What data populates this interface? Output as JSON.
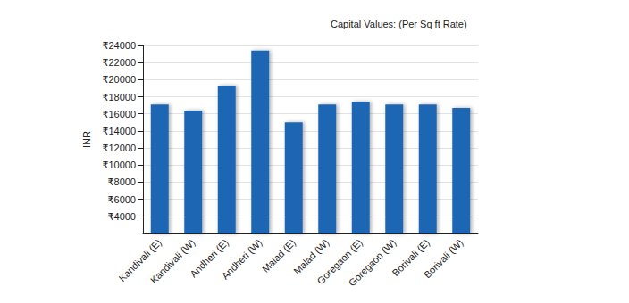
{
  "chart_data": {
    "type": "bar",
    "title": "Capital Values: (Per Sq ft Rate)",
    "y_label": "INR",
    "categories": [
      "Kandivali (E)",
      "Kandivali (W)",
      "Andheri (E)",
      "Andheri (W)",
      "Malad (E)",
      "Malad (W)",
      "Goregaon (E)",
      "Goregaon (W)",
      "Borivali (E)",
      "Borivali (W)"
    ],
    "values": [
      17100,
      16400,
      19300,
      23400,
      15000,
      17100,
      17400,
      17100,
      17100,
      16700
    ],
    "color": "#1f66b3",
    "ylim": [
      2000,
      24000
    ],
    "yticks": [
      {
        "value": 4000,
        "label": "₹4000"
      },
      {
        "value": 6000,
        "label": "₹6000"
      },
      {
        "value": 8000,
        "label": "₹8000"
      },
      {
        "value": 10000,
        "label": "₹10000"
      },
      {
        "value": 12000,
        "label": "₹12000"
      },
      {
        "value": 14000,
        "label": "₹14000"
      },
      {
        "value": 16000,
        "label": "₹16000"
      },
      {
        "value": 18000,
        "label": "₹18000"
      },
      {
        "value": 20000,
        "label": "₹20000"
      },
      {
        "value": 22000,
        "label": "₹22000"
      },
      {
        "value": 24000,
        "label": "₹24000"
      }
    ],
    "grid": true
  }
}
